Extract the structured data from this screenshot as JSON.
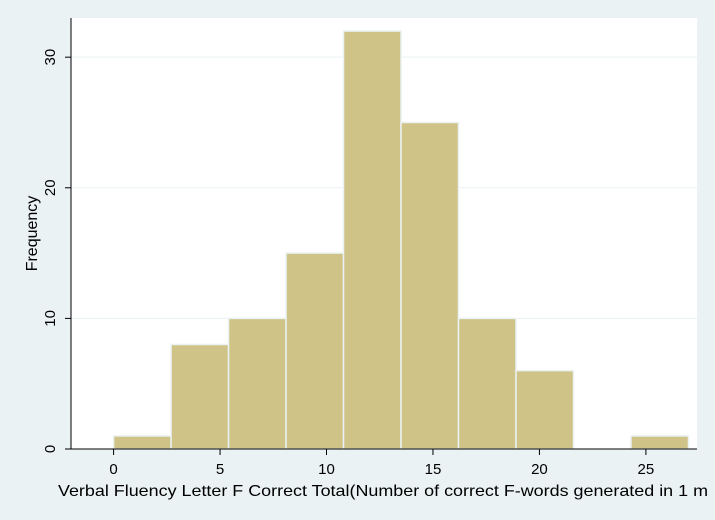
{
  "chart_data": {
    "type": "bar",
    "subtype": "histogram",
    "xlabel": "Verbal Fluency Letter F Correct Total(Number of correct F-words generated in 1 m",
    "ylabel": "Frequency",
    "xlim": [
      -2,
      27.4
    ],
    "ylim": [
      0,
      33
    ],
    "xticks": [
      0,
      5,
      10,
      15,
      20,
      25
    ],
    "yticks": [
      0,
      10,
      20,
      30
    ],
    "grid": true,
    "bins": [
      {
        "start": 0.0,
        "end": 2.7,
        "count": 1
      },
      {
        "start": 2.7,
        "end": 5.4,
        "count": 8
      },
      {
        "start": 5.4,
        "end": 8.1,
        "count": 10
      },
      {
        "start": 8.1,
        "end": 10.8,
        "count": 15
      },
      {
        "start": 10.8,
        "end": 13.5,
        "count": 32
      },
      {
        "start": 13.5,
        "end": 16.2,
        "count": 25
      },
      {
        "start": 16.2,
        "end": 18.9,
        "count": 10
      },
      {
        "start": 18.9,
        "end": 21.6,
        "count": 6
      },
      {
        "start": 21.6,
        "end": 24.3,
        "count": 0
      },
      {
        "start": 24.3,
        "end": 27.0,
        "count": 1
      }
    ],
    "colors": {
      "bar_fill": "#cfc387",
      "bar_stroke": "#eaf2f3",
      "plot_background": "#ffffff",
      "outer_background": "#eaf2f3",
      "grid": "#eaf2f3",
      "axis": "#000000"
    }
  }
}
